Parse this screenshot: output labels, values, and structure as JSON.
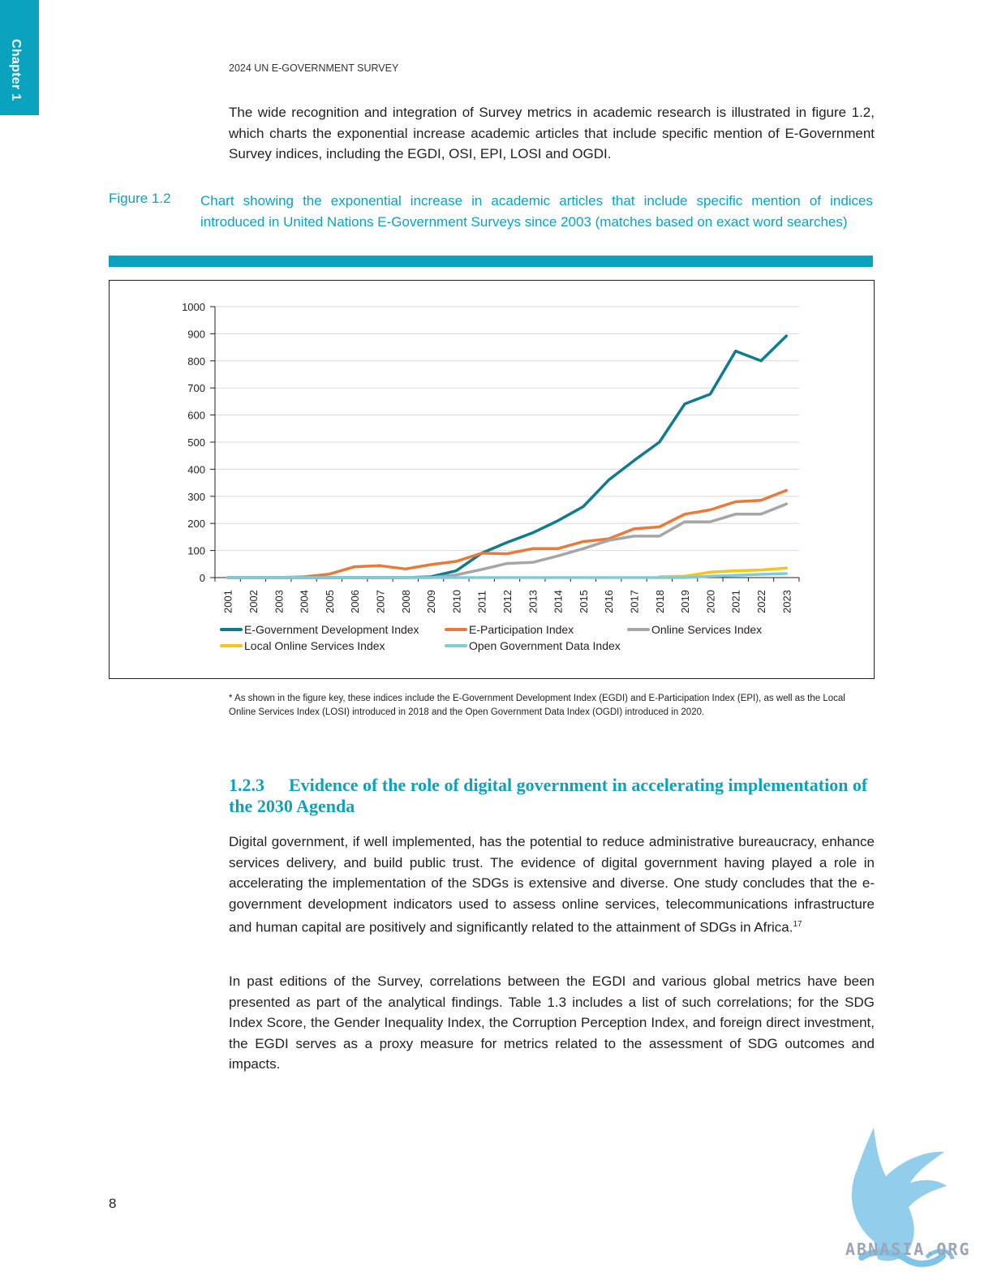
{
  "chapter_tab": "Chapter 1",
  "running_head": "2024 UN E-GOVERNMENT SURVEY",
  "intro_paragraph": "The wide recognition and integration of Survey metrics in academic research is illustrated in figure 1.2, which charts the exponential increase academic articles that include specific mention of E-Government Survey indices, including the EGDI, OSI, EPI, LOSI and OGDI.",
  "figure": {
    "label": "Figure 1.2",
    "caption": "Chart showing the exponential increase in academic articles that include specific mention of indices introduced in United Nations E-Government Surveys since 2003 (matches based on exact word searches)"
  },
  "chart_data": {
    "type": "line",
    "title": "",
    "xlabel": "",
    "ylabel": "",
    "ylim": [
      0,
      1000
    ],
    "yticks": [
      "0",
      "100",
      "200",
      "300",
      "400",
      "500",
      "600",
      "700",
      "800",
      "900",
      "1000"
    ],
    "categories": [
      "2001",
      "2002",
      "2003",
      "2004",
      "2005",
      "2006",
      "2007",
      "2008",
      "2009",
      "2010",
      "2011",
      "2012",
      "2013",
      "2014",
      "2015",
      "2016",
      "2017",
      "2018",
      "2019",
      "2020",
      "2021",
      "2022",
      "2023"
    ],
    "grid": true,
    "legend_position": "bottom",
    "series": [
      {
        "name": "E-Government Development Index",
        "color": "#0e7c8e",
        "values": [
          0,
          0,
          0,
          0,
          0,
          0,
          0,
          0,
          3,
          25,
          90,
          130,
          165,
          210,
          262,
          360,
          432,
          500,
          641,
          677,
          836,
          800,
          892
        ]
      },
      {
        "name": "E-Participation Index",
        "color": "#e87a3a",
        "values": [
          0,
          0,
          0,
          3,
          13,
          40,
          44,
          32,
          48,
          60,
          90,
          88,
          107,
          107,
          133,
          143,
          180,
          187,
          234,
          250,
          280,
          285,
          322
        ]
      },
      {
        "name": "Online Services Index",
        "color": "#a6a6a6",
        "values": [
          0,
          0,
          0,
          0,
          0,
          0,
          0,
          0,
          0,
          10,
          30,
          52,
          56,
          80,
          107,
          137,
          153,
          153,
          206,
          206,
          234,
          234,
          272
        ]
      },
      {
        "name": "Local Online Services Index",
        "color": "#f5c518",
        "values": [
          null,
          null,
          null,
          null,
          null,
          null,
          null,
          null,
          null,
          null,
          null,
          null,
          null,
          null,
          null,
          null,
          null,
          3,
          5,
          20,
          25,
          28,
          35
        ]
      },
      {
        "name": "Open Government Data Index",
        "color": "#7fcbdc",
        "values": [
          0,
          0,
          0,
          0,
          0,
          0,
          0,
          0,
          0,
          0,
          0,
          0,
          0,
          0,
          0,
          0,
          0,
          0,
          0,
          5,
          8,
          12,
          15
        ]
      }
    ]
  },
  "footnote": "* As shown in the figure key, these indices include the E-Government Development Index (EGDI) and E-Participation Index (EPI), as well as the Local Online Services Index (LOSI) introduced in 2018 and the Open Government Data Index (OGDI) introduced in 2020.",
  "section": {
    "number": "1.2.3",
    "title": "Evidence of the role of digital government in accelerating implementation of the 2030 Agenda"
  },
  "paragraph_2": "Digital government, if well implemented, has the potential to reduce administrative bureaucracy, enhance services delivery, and build public trust. The evidence of digital government having played a role in accelerating the implementation of the SDGs is extensive and diverse. One study concludes that the e-government development indicators used to assess online services, telecommunications infrastructure and human capital are positively and significantly related to the attainment of SDGs in Africa.",
  "paragraph_2_footnote_ref": "17",
  "paragraph_3": "In past editions of the Survey, correlations between the EGDI and various global metrics have been presented as part of the analytical findings. Table 1.3 includes a list of such correlations; for the SDG Index Score, the Gender Inequality Index, the Corruption Perception Index, and foreign direct investment, the EGDI serves as a proxy measure for metrics related to the assessment of SDG outcomes and impacts.",
  "page_number": "8",
  "watermark_text": "ABNASIA.ORG"
}
